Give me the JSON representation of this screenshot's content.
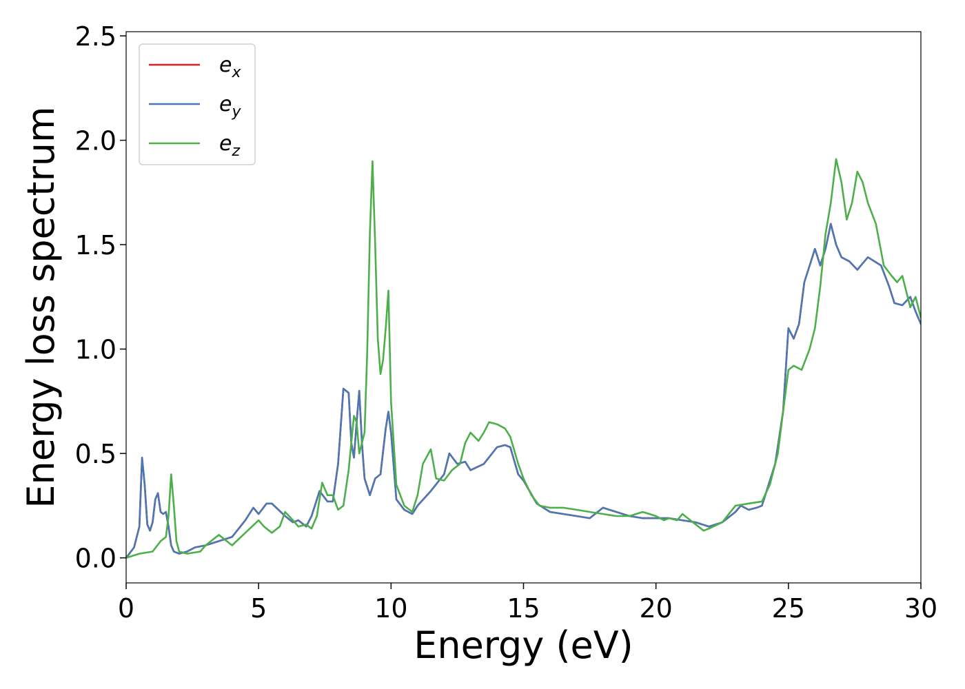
{
  "chart_data": {
    "type": "line",
    "xlabel": "Energy (eV)",
    "ylabel": "Energy loss spectrum",
    "xlim": [
      0,
      30
    ],
    "ylim": [
      -0.12,
      2.52
    ],
    "xticks": [
      0,
      5,
      10,
      15,
      20,
      25,
      30
    ],
    "xtick_labels": [
      "0",
      "5",
      "10",
      "15",
      "20",
      "25",
      "30"
    ],
    "yticks": [
      0.0,
      0.5,
      1.0,
      1.5,
      2.0,
      2.5
    ],
    "ytick_labels": [
      "0.0",
      "0.5",
      "1.0",
      "1.5",
      "2.0",
      "2.5"
    ],
    "grid": false,
    "legend_position": "top-left",
    "series": [
      {
        "name": "e",
        "subscript": "x",
        "color": "#e41a1c",
        "x": [
          0,
          0.3,
          0.5,
          0.6,
          0.7,
          0.8,
          0.9,
          1.0,
          1.1,
          1.2,
          1.3,
          1.4,
          1.5,
          1.6,
          1.7,
          1.8,
          2.0,
          2.3,
          2.6,
          3.0,
          3.5,
          4.0,
          4.5,
          4.8,
          5.0,
          5.3,
          5.5,
          6.0,
          6.3,
          6.5,
          6.8,
          7.0,
          7.3,
          7.6,
          7.8,
          8.0,
          8.2,
          8.4,
          8.5,
          8.6,
          8.7,
          8.8,
          8.9,
          9.0,
          9.2,
          9.4,
          9.6,
          9.8,
          9.9,
          10.0,
          10.2,
          10.5,
          10.8,
          11.0,
          11.5,
          12.0,
          12.2,
          12.5,
          12.8,
          13.0,
          13.5,
          14.0,
          14.3,
          14.5,
          14.8,
          15.0,
          15.5,
          16.0,
          16.5,
          17.0,
          17.5,
          18.0,
          18.5,
          19.0,
          19.5,
          20.0,
          20.5,
          21.0,
          21.5,
          22.0,
          22.5,
          23.0,
          23.2,
          23.5,
          23.8,
          24.0,
          24.5,
          24.8,
          25.0,
          25.2,
          25.4,
          25.6,
          25.8,
          26.0,
          26.2,
          26.4,
          26.6,
          26.8,
          27.0,
          27.3,
          27.6,
          28.0,
          28.5,
          28.8,
          29.0,
          29.3,
          29.6,
          29.8,
          30.0
        ],
        "y": [
          0.0,
          0.05,
          0.15,
          0.48,
          0.35,
          0.16,
          0.13,
          0.17,
          0.28,
          0.31,
          0.22,
          0.21,
          0.22,
          0.15,
          0.06,
          0.03,
          0.02,
          0.03,
          0.05,
          0.06,
          0.08,
          0.1,
          0.18,
          0.24,
          0.21,
          0.26,
          0.26,
          0.2,
          0.17,
          0.18,
          0.15,
          0.2,
          0.32,
          0.27,
          0.27,
          0.45,
          0.81,
          0.79,
          0.55,
          0.48,
          0.65,
          0.8,
          0.55,
          0.38,
          0.3,
          0.38,
          0.4,
          0.62,
          0.7,
          0.6,
          0.28,
          0.23,
          0.21,
          0.25,
          0.32,
          0.4,
          0.5,
          0.45,
          0.46,
          0.42,
          0.45,
          0.53,
          0.54,
          0.53,
          0.4,
          0.37,
          0.26,
          0.22,
          0.21,
          0.2,
          0.19,
          0.24,
          0.22,
          0.2,
          0.19,
          0.19,
          0.19,
          0.18,
          0.17,
          0.15,
          0.17,
          0.22,
          0.25,
          0.23,
          0.24,
          0.25,
          0.45,
          0.7,
          1.1,
          1.05,
          1.12,
          1.32,
          1.4,
          1.48,
          1.4,
          1.48,
          1.6,
          1.5,
          1.44,
          1.42,
          1.38,
          1.44,
          1.4,
          1.3,
          1.22,
          1.21,
          1.25,
          1.18,
          1.12
        ]
      },
      {
        "name": "e",
        "subscript": "y",
        "color": "#4a78b5",
        "x": [
          0,
          0.3,
          0.5,
          0.6,
          0.7,
          0.8,
          0.9,
          1.0,
          1.1,
          1.2,
          1.3,
          1.4,
          1.5,
          1.6,
          1.7,
          1.8,
          2.0,
          2.3,
          2.6,
          3.0,
          3.5,
          4.0,
          4.5,
          4.8,
          5.0,
          5.3,
          5.5,
          6.0,
          6.3,
          6.5,
          6.8,
          7.0,
          7.3,
          7.6,
          7.8,
          8.0,
          8.2,
          8.4,
          8.5,
          8.6,
          8.7,
          8.8,
          8.9,
          9.0,
          9.2,
          9.4,
          9.6,
          9.8,
          9.9,
          10.0,
          10.2,
          10.5,
          10.8,
          11.0,
          11.5,
          12.0,
          12.2,
          12.5,
          12.8,
          13.0,
          13.5,
          14.0,
          14.3,
          14.5,
          14.8,
          15.0,
          15.5,
          16.0,
          16.5,
          17.0,
          17.5,
          18.0,
          18.5,
          19.0,
          19.5,
          20.0,
          20.5,
          21.0,
          21.5,
          22.0,
          22.5,
          23.0,
          23.2,
          23.5,
          23.8,
          24.0,
          24.5,
          24.8,
          25.0,
          25.2,
          25.4,
          25.6,
          25.8,
          26.0,
          26.2,
          26.4,
          26.6,
          26.8,
          27.0,
          27.3,
          27.6,
          28.0,
          28.5,
          28.8,
          29.0,
          29.3,
          29.6,
          29.8,
          30.0
        ],
        "y": [
          0.0,
          0.05,
          0.15,
          0.48,
          0.35,
          0.16,
          0.13,
          0.17,
          0.28,
          0.31,
          0.22,
          0.21,
          0.22,
          0.15,
          0.06,
          0.03,
          0.02,
          0.03,
          0.05,
          0.06,
          0.08,
          0.1,
          0.18,
          0.24,
          0.21,
          0.26,
          0.26,
          0.2,
          0.17,
          0.18,
          0.15,
          0.2,
          0.32,
          0.27,
          0.27,
          0.45,
          0.81,
          0.79,
          0.55,
          0.48,
          0.65,
          0.8,
          0.55,
          0.38,
          0.3,
          0.38,
          0.4,
          0.62,
          0.7,
          0.6,
          0.28,
          0.23,
          0.21,
          0.25,
          0.32,
          0.4,
          0.5,
          0.45,
          0.46,
          0.42,
          0.45,
          0.53,
          0.54,
          0.53,
          0.4,
          0.37,
          0.26,
          0.22,
          0.21,
          0.2,
          0.19,
          0.24,
          0.22,
          0.2,
          0.19,
          0.19,
          0.19,
          0.18,
          0.17,
          0.15,
          0.17,
          0.22,
          0.25,
          0.23,
          0.24,
          0.25,
          0.45,
          0.7,
          1.1,
          1.05,
          1.12,
          1.32,
          1.4,
          1.48,
          1.4,
          1.48,
          1.6,
          1.5,
          1.44,
          1.42,
          1.38,
          1.44,
          1.4,
          1.3,
          1.22,
          1.21,
          1.25,
          1.18,
          1.12
        ]
      },
      {
        "name": "e",
        "subscript": "z",
        "color": "#4daf4a",
        "x": [
          0,
          0.5,
          1.0,
          1.3,
          1.5,
          1.6,
          1.7,
          1.8,
          1.9,
          2.0,
          2.3,
          2.8,
          3.0,
          3.5,
          3.8,
          4.0,
          4.5,
          5.0,
          5.2,
          5.5,
          5.8,
          6.0,
          6.3,
          6.5,
          6.8,
          7.0,
          7.2,
          7.4,
          7.6,
          7.8,
          8.0,
          8.2,
          8.4,
          8.6,
          8.7,
          8.8,
          9.0,
          9.1,
          9.2,
          9.3,
          9.4,
          9.5,
          9.6,
          9.7,
          9.8,
          9.9,
          10.0,
          10.2,
          10.5,
          10.8,
          11.0,
          11.2,
          11.5,
          11.7,
          12.0,
          12.3,
          12.6,
          12.8,
          13.0,
          13.3,
          13.5,
          13.7,
          14.0,
          14.3,
          14.5,
          14.8,
          15.0,
          15.3,
          15.6,
          16.0,
          16.5,
          17.0,
          17.5,
          18.0,
          18.5,
          19.0,
          19.5,
          20.0,
          20.3,
          20.5,
          20.8,
          21.0,
          21.3,
          21.6,
          21.8,
          22.0,
          22.5,
          23.0,
          23.5,
          24.0,
          24.3,
          24.6,
          24.8,
          25.0,
          25.2,
          25.5,
          25.8,
          26.0,
          26.2,
          26.4,
          26.6,
          26.8,
          27.0,
          27.2,
          27.4,
          27.6,
          27.8,
          28.0,
          28.3,
          28.6,
          28.9,
          29.1,
          29.3,
          29.6,
          29.8,
          30.0
        ],
        "y": [
          0.0,
          0.02,
          0.03,
          0.08,
          0.1,
          0.2,
          0.4,
          0.25,
          0.08,
          0.03,
          0.02,
          0.03,
          0.06,
          0.11,
          0.08,
          0.06,
          0.12,
          0.18,
          0.15,
          0.12,
          0.15,
          0.22,
          0.18,
          0.15,
          0.16,
          0.14,
          0.2,
          0.36,
          0.3,
          0.3,
          0.23,
          0.25,
          0.42,
          0.68,
          0.65,
          0.5,
          0.6,
          0.98,
          1.55,
          1.9,
          1.5,
          1.05,
          0.88,
          0.95,
          1.1,
          1.28,
          0.75,
          0.35,
          0.25,
          0.22,
          0.3,
          0.45,
          0.52,
          0.38,
          0.37,
          0.42,
          0.45,
          0.55,
          0.6,
          0.56,
          0.6,
          0.65,
          0.64,
          0.62,
          0.58,
          0.45,
          0.38,
          0.3,
          0.25,
          0.24,
          0.24,
          0.23,
          0.22,
          0.21,
          0.2,
          0.2,
          0.22,
          0.2,
          0.18,
          0.19,
          0.18,
          0.21,
          0.18,
          0.15,
          0.13,
          0.14,
          0.17,
          0.25,
          0.26,
          0.27,
          0.35,
          0.5,
          0.7,
          0.9,
          0.92,
          0.9,
          1.0,
          1.1,
          1.3,
          1.55,
          1.7,
          1.91,
          1.8,
          1.62,
          1.7,
          1.85,
          1.8,
          1.7,
          1.6,
          1.4,
          1.35,
          1.32,
          1.35,
          1.2,
          1.25,
          1.15
        ]
      }
    ]
  }
}
